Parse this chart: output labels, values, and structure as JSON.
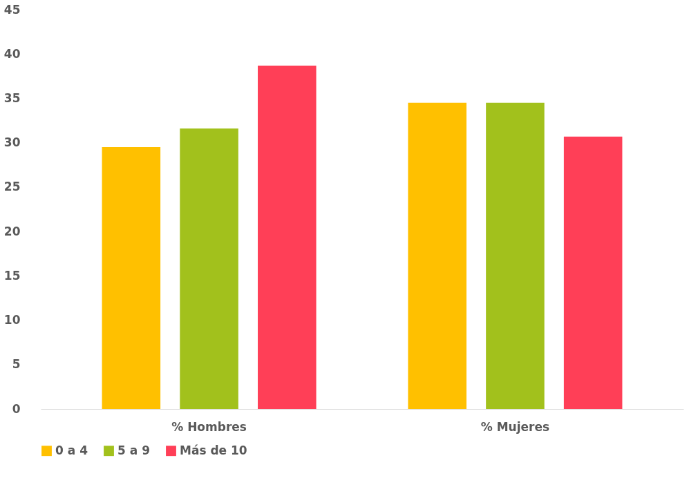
{
  "chart_data": {
    "type": "bar",
    "categories": [
      "% Hombres",
      "% Mujeres"
    ],
    "series": [
      {
        "name": "0 a 4",
        "color": "#ffc000",
        "values": [
          29.5,
          34.5
        ]
      },
      {
        "name": "5 a 9",
        "color": "#a2c11c",
        "values": [
          31.6,
          34.5
        ]
      },
      {
        "name": "Más de 10",
        "color": "#ff3f57",
        "values": [
          38.7,
          30.7
        ]
      }
    ],
    "ylim": [
      0,
      45
    ],
    "yticks": [
      0,
      5,
      10,
      15,
      20,
      25,
      30,
      35,
      40,
      45
    ],
    "grid": false,
    "legend": "bottom"
  }
}
